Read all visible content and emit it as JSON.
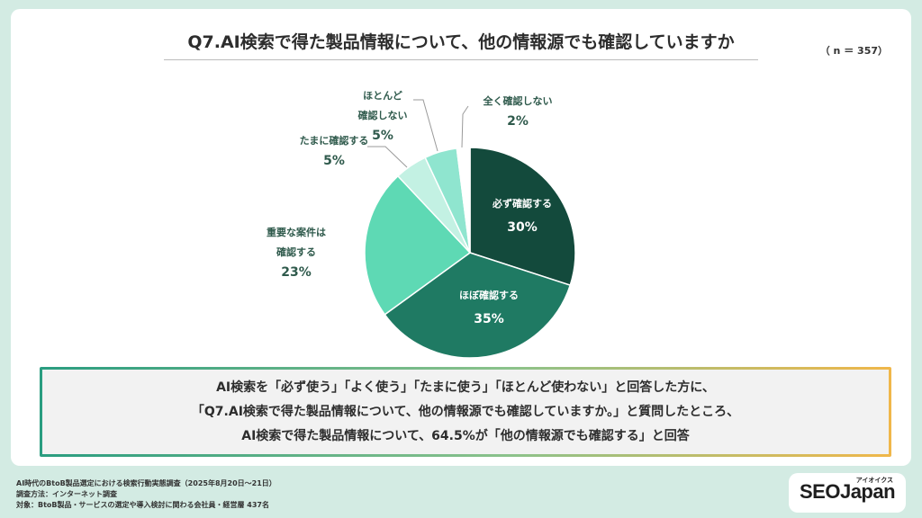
{
  "title": "Q7.AI検索で得た製品情報について、他の情報源でも確認していますか",
  "sample_size": "（ n ＝ 357）",
  "chart_data": {
    "type": "pie",
    "title": "Q7.AI検索で得た製品情報について、他の情報源でも確認していますか",
    "slices": [
      {
        "label": "必ず確認する",
        "value": 30,
        "display": "30%",
        "color": "#134a3c"
      },
      {
        "label": "ほぼ確認する",
        "value": 35,
        "display": "35%",
        "color": "#1f7a63"
      },
      {
        "label": "重要な案件は確認する",
        "value": 23,
        "display": "23%",
        "color": "#5ed9b4"
      },
      {
        "label": "たまに確認する",
        "value": 5,
        "display": "5%",
        "color": "#c3f1e3"
      },
      {
        "label": "ほとんど確認しない",
        "value": 5,
        "display": "5%",
        "color": "#8fe5cf"
      },
      {
        "label": "全く確認しない",
        "value": 2,
        "display": "2%",
        "color": "#ffffff"
      }
    ],
    "legend": "none"
  },
  "labels": {
    "s0": {
      "l1": "必ず確認する",
      "pct": "30%"
    },
    "s1": {
      "l1": "ほぼ確認する",
      "pct": "35%"
    },
    "s2": {
      "l1": "重要な案件は",
      "l2": "確認する",
      "pct": "23%"
    },
    "s3": {
      "l1": "たまに確認する",
      "pct": "5%"
    },
    "s4": {
      "l1": "ほとんど",
      "l2": "確認しない",
      "pct": "5%"
    },
    "s5": {
      "l1": "全く確認しない",
      "pct": "2%"
    }
  },
  "summary": {
    "line1": "AI検索を「必ず使う」「よく使う」「たまに使う」「ほとんど使わない」と回答した方に、",
    "line2": "「Q7.AI検索で得た製品情報について、他の情報源でも確認していますか。」と質問したところ、",
    "line3": "AI検索で得た製品情報について、64.5%が「他の情報源でも確認する」と回答"
  },
  "footer": {
    "line1": "AI時代のBtoB製品選定における検索行動実態調査（2025年8月20日～21日）",
    "line2": "調査方法：インターネット調査",
    "line3": "対象：BtoB製品・サービスの選定や導入検討に関わる会社員・経営層 437名"
  },
  "logo": {
    "word": "SEOJapan",
    "kana": "アイオイクス"
  }
}
